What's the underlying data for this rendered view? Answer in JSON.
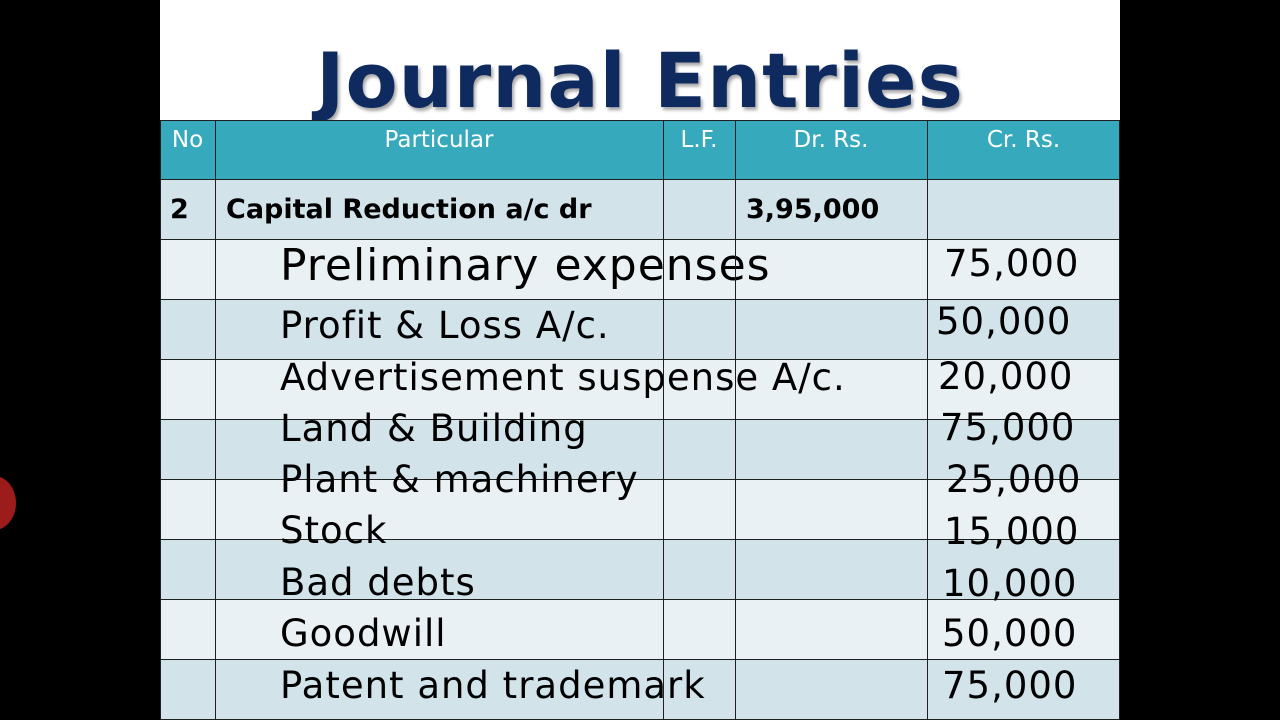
{
  "title": "Journal Entries",
  "table": {
    "headers": {
      "no": "No",
      "particular": "Particular",
      "lf": "L.F.",
      "dr": "Dr. Rs.",
      "cr": "Cr. Rs."
    },
    "debit_entry": {
      "no": "2",
      "particular": "Capital Reduction a/c dr",
      "lf": "",
      "dr": "3,95,000",
      "cr": ""
    },
    "credit_entries": [
      {
        "particular": "Preliminary expenses",
        "cr": "75,000"
      },
      {
        "particular": "Profit & Loss A/c.",
        "cr": "50,000"
      },
      {
        "particular": "Advertisement suspense A/c.",
        "cr": "20,000"
      },
      {
        "particular": "Land & Building",
        "cr": "75,000"
      },
      {
        "particular": "Plant & machinery",
        "cr": "25,000"
      },
      {
        "particular": "Stock",
        "cr": "15,000"
      },
      {
        "particular": "Bad debts",
        "cr": "10,000"
      },
      {
        "particular": "Goodwill",
        "cr": "50,000"
      },
      {
        "particular": "Patent and trademark",
        "cr": "75,000"
      }
    ]
  },
  "colors": {
    "title": "#0f2a5e",
    "header_bg": "#37a9bd",
    "row_dark": "#d2e3ea",
    "row_light": "#e9f1f4"
  }
}
